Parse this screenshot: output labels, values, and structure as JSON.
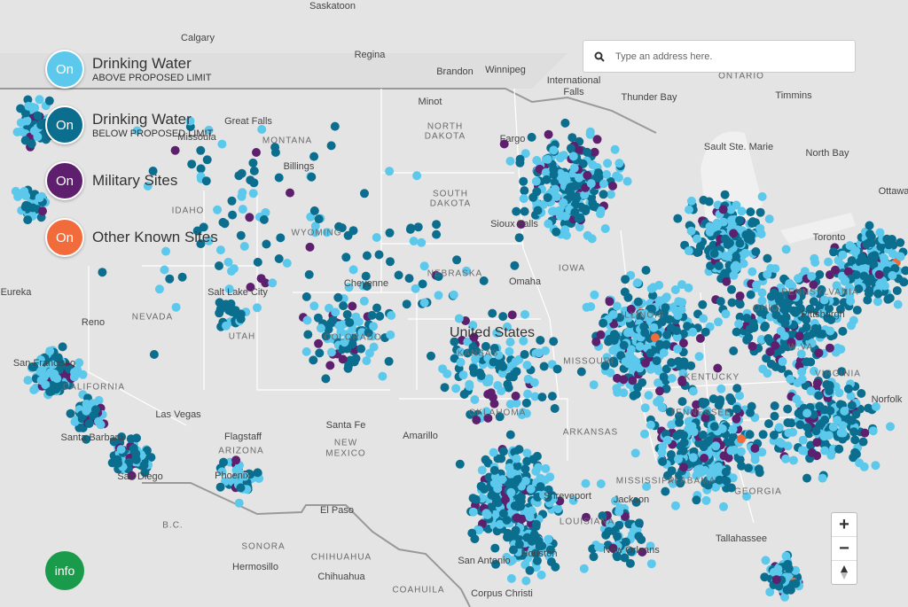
{
  "legend": [
    {
      "toggle": "On",
      "title": "Drinking Water",
      "subtitle": "ABOVE PROPOSED LIMIT",
      "color": "#5bc8ec"
    },
    {
      "toggle": "On",
      "title": "Drinking Water",
      "subtitle": "BELOW PROPOSED LIMIT",
      "color": "#0b6e8e"
    },
    {
      "toggle": "On",
      "title": "Military Sites",
      "color": "#5e1f6e"
    },
    {
      "toggle": "On",
      "title": "Other Known Sites",
      "color": "#f26b3a"
    }
  ],
  "search": {
    "placeholder": "Type an address here."
  },
  "zoom": {
    "in": "+",
    "out": "−"
  },
  "info": "info",
  "map_labels": [
    "Saskatoon",
    "Calgary",
    "Regina",
    "Brandon",
    "Winnipeg",
    "International",
    "Falls",
    "Thunder Bay",
    "ONTARIO",
    "Timmins",
    "Great Falls",
    "MONTANA",
    "Missoula",
    "Billings",
    "Minot",
    "NORTH",
    "DAKOTA",
    "Fargo",
    "Sault Ste. Marie",
    "North Bay",
    "Ottawa",
    "SOUTH",
    "DAKOTA",
    "IDAHO",
    "WYOMING",
    "Sioux Falls",
    "Toronto",
    "NEBRASKA",
    "Cheyenne",
    "Omaha",
    "IOWA",
    "Eureka",
    "Salt Lake City",
    "NEVADA",
    "Reno",
    "UTAH",
    "COLORADO",
    "United States",
    "KANSAS",
    "MISSOURI",
    "ILLINOIS",
    "OHIO",
    "PENNSYLVANIA",
    "Pittsburgh",
    "W.VA.",
    "KENTUCKY",
    "VIRGINIA",
    "Norfolk",
    "San Francisco",
    "CALIFORNIA",
    "Las Vegas",
    "OKLAHOMA",
    "ARKANSAS",
    "TENNESSEE",
    "Santa Barbara",
    "Flagstaff",
    "ARIZONA",
    "Santa Fe",
    "NEW",
    "MEXICO",
    "Amarillo",
    "San Diego",
    "Phoenix",
    "El Paso",
    "MISSISSIPPI",
    "ALABAMA",
    "GEORGIA",
    "Jackson",
    "Shreveport",
    "LOUISIANA",
    "New Orleans",
    "Tallahassee",
    "Houston",
    "San Antonio",
    "Corpus Christi",
    "B.C.",
    "SONORA",
    "Hermosillo",
    "CHIHUAHUA",
    "Chihuahua",
    "COAHUILA"
  ]
}
